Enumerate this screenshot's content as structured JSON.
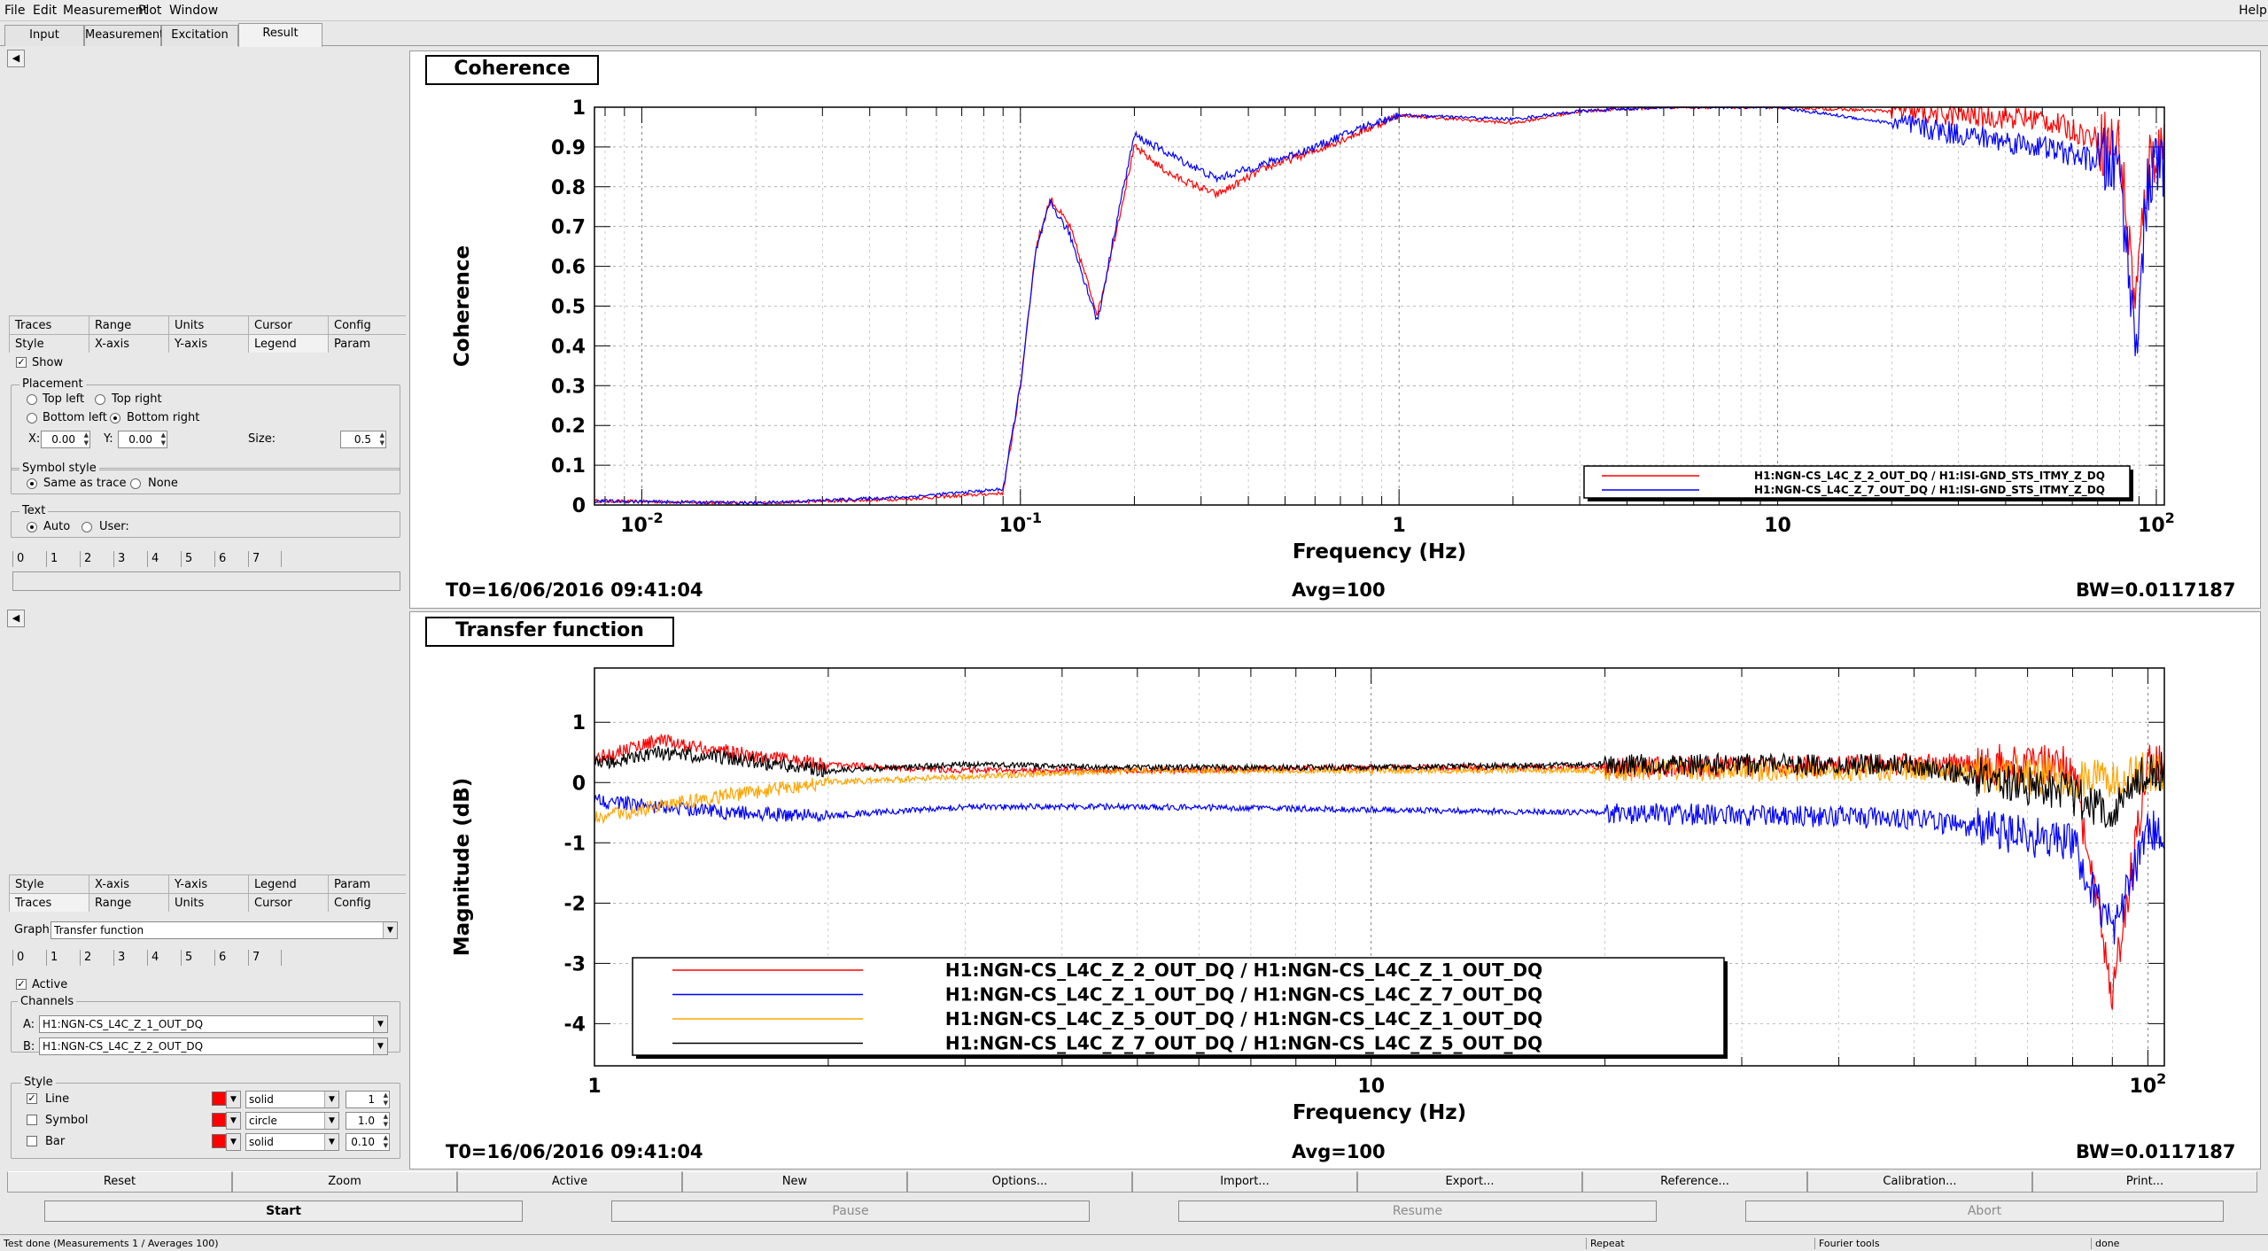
{
  "menu": {
    "file": "File",
    "edit": "Edit",
    "measurement": "Measurement",
    "plot": "Plot",
    "window": "Window",
    "help": "Help"
  },
  "tabs": {
    "input": "Input",
    "measurement": "Measurement",
    "excitation": "Excitation",
    "result": "Result"
  },
  "panel1": {
    "tabs_row1": [
      "Traces",
      "Range",
      "Units",
      "Cursor",
      "Config"
    ],
    "tabs_row2": [
      "Style",
      "X-axis",
      "Y-axis",
      "Legend",
      "Param"
    ],
    "show": "Show",
    "placement": {
      "title": "Placement",
      "top_left": "Top left",
      "top_right": "Top right",
      "bottom_left": "Bottom left",
      "bottom_right": "Bottom right",
      "x_label": "X:",
      "x_value": "0.00",
      "y_label": "Y:",
      "y_value": "0.00",
      "size_label": "Size:",
      "size_value": "0.5"
    },
    "symbol_style": {
      "title": "Symbol style",
      "same": "Same as trace",
      "none": "None"
    },
    "text": {
      "title": "Text",
      "auto": "Auto",
      "user": "User:"
    },
    "num_tabs": [
      "0",
      "1",
      "2",
      "3",
      "4",
      "5",
      "6",
      "7"
    ]
  },
  "panel2": {
    "tabs_row1": [
      "Style",
      "X-axis",
      "Y-axis",
      "Legend",
      "Param"
    ],
    "tabs_row2": [
      "Traces",
      "Range",
      "Units",
      "Cursor",
      "Config"
    ],
    "graph_label": "Graph:",
    "graph_value": "Transfer function",
    "num_tabs": [
      "0",
      "1",
      "2",
      "3",
      "4",
      "5",
      "6",
      "7"
    ],
    "active": "Active",
    "channels": {
      "title": "Channels",
      "a_label": "A:",
      "a_value": "H1:NGN-CS_L4C_Z_1_OUT_DQ",
      "b_label": "B:",
      "b_value": "H1:NGN-CS_L4C_Z_2_OUT_DQ"
    },
    "style": {
      "title": "Style",
      "line": "Line",
      "symbol": "Symbol",
      "bar": "Bar",
      "line_style": "solid",
      "symbol_style": "circle",
      "bar_style": "solid",
      "line_width": "1",
      "symbol_size": "1.0",
      "bar_width": "0.10"
    }
  },
  "plot1": {
    "title": "Coherence",
    "t0": "T0=16/06/2016 09:41:04",
    "avg": "Avg=100",
    "bw": "BW=0.0117187"
  },
  "plot2": {
    "title": "Transfer function",
    "t0": "T0=16/06/2016 09:41:04",
    "avg": "Avg=100",
    "bw": "BW=0.0117187"
  },
  "buttons": [
    "Reset",
    "Zoom",
    "Active",
    "New",
    "Options...",
    "Import...",
    "Export...",
    "Reference...",
    "Calibration...",
    "Print..."
  ],
  "controls": {
    "start": "Start",
    "pause": "Pause",
    "resume": "Resume",
    "abort": "Abort"
  },
  "status": {
    "message": "Test done (Measurements 1 / Averages 100)",
    "repeat": "Repeat",
    "fourier": "Fourier tools",
    "done": "done"
  },
  "colors": {
    "red": "#ff0000",
    "blue": "#0000ff",
    "orange": "#ffa500",
    "black": "#000000"
  },
  "chart_data": [
    {
      "type": "line",
      "title": "Coherence",
      "xlabel": "Frequency (Hz)",
      "ylabel": "Coherence",
      "xscale": "log",
      "xlim": [
        0.0075,
        105
      ],
      "ylim": [
        0,
        1
      ],
      "x_ticks": [
        "10^-2",
        "10^-1",
        "1",
        "10",
        "10^2"
      ],
      "y_ticks": [
        "0",
        "0.1",
        "0.2",
        "0.3",
        "0.4",
        "0.5",
        "0.6",
        "0.7",
        "0.8",
        "0.9",
        "1"
      ],
      "grid": true,
      "legend_position": "bottom-right",
      "series": [
        {
          "name": "H1:NGN-CS_L4C_Z_2_OUT_DQ / H1:ISI-GND_STS_ITMY_Z_DQ",
          "color": "#ff0000",
          "x": [
            0.0075,
            0.02,
            0.05,
            0.09,
            0.1,
            0.11,
            0.12,
            0.135,
            0.16,
            0.18,
            0.2,
            0.25,
            0.33,
            0.45,
            0.6,
            0.8,
            1,
            2,
            3,
            5,
            10,
            20,
            50,
            80,
            88,
            95,
            100
          ],
          "y": [
            0.01,
            0.005,
            0.015,
            0.03,
            0.3,
            0.65,
            0.77,
            0.7,
            0.48,
            0.7,
            0.9,
            0.83,
            0.78,
            0.85,
            0.89,
            0.94,
            0.98,
            0.96,
            0.99,
            1.0,
            1.0,
            0.99,
            0.97,
            0.9,
            0.5,
            0.85,
            0.9
          ]
        },
        {
          "name": "H1:NGN-CS_L4C_Z_7_OUT_DQ / H1:ISI-GND_STS_ITMY_Z_DQ",
          "color": "#0000ff",
          "x": [
            0.0075,
            0.02,
            0.05,
            0.09,
            0.1,
            0.11,
            0.12,
            0.135,
            0.16,
            0.18,
            0.2,
            0.25,
            0.33,
            0.45,
            0.6,
            0.8,
            1,
            2,
            3,
            5,
            10,
            20,
            50,
            80,
            88,
            95,
            100
          ],
          "y": [
            0.01,
            0.005,
            0.02,
            0.04,
            0.3,
            0.64,
            0.76,
            0.68,
            0.46,
            0.72,
            0.93,
            0.88,
            0.82,
            0.86,
            0.9,
            0.95,
            0.98,
            0.97,
            0.99,
            1.0,
            1.0,
            0.96,
            0.9,
            0.85,
            0.4,
            0.8,
            0.85
          ]
        }
      ]
    },
    {
      "type": "line",
      "title": "Transfer function",
      "xlabel": "Frequency (Hz)",
      "ylabel": "Magnitude (dB)",
      "xscale": "log",
      "xlim": [
        1,
        105
      ],
      "ylim": [
        -4.7,
        1.9
      ],
      "x_ticks": [
        "1",
        "10",
        "10^2"
      ],
      "y_ticks": [
        "-4",
        "-3",
        "-2",
        "-1",
        "0",
        "1"
      ],
      "grid": true,
      "legend_position": "bottom-left",
      "series": [
        {
          "name": "H1:NGN-CS_L4C_Z_2_OUT_DQ / H1:NGN-CS_L4C_Z_1_OUT_DQ",
          "color": "#ff0000",
          "x": [
            1,
            1.2,
            1.5,
            2,
            3,
            5,
            10,
            20,
            50,
            80,
            90,
            100
          ],
          "y": [
            0.4,
            0.7,
            0.5,
            0.3,
            0.2,
            0.2,
            0.25,
            0.25,
            0.3,
            0.3,
            -3.5,
            0.3
          ]
        },
        {
          "name": "H1:NGN-CS_L4C_Z_1_OUT_DQ / H1:NGN-CS_L4C_Z_7_OUT_DQ",
          "color": "#0000ff",
          "x": [
            1,
            1.2,
            1.5,
            2,
            3,
            5,
            10,
            20,
            50,
            80,
            90,
            100
          ],
          "y": [
            -0.3,
            -0.4,
            -0.5,
            -0.55,
            -0.4,
            -0.4,
            -0.45,
            -0.5,
            -0.6,
            -1.0,
            -2.5,
            -0.8
          ]
        },
        {
          "name": "H1:NGN-CS_L4C_Z_5_OUT_DQ / H1:NGN-CS_L4C_Z_1_OUT_DQ",
          "color": "#ffa500",
          "x": [
            1,
            1.2,
            1.5,
            2,
            3,
            5,
            10,
            20,
            50,
            80,
            90,
            100
          ],
          "y": [
            -0.6,
            -0.4,
            -0.2,
            0.0,
            0.1,
            0.2,
            0.2,
            0.2,
            0.2,
            0.1,
            0.0,
            0.2
          ]
        },
        {
          "name": "H1:NGN-CS_L4C_Z_7_OUT_DQ / H1:NGN-CS_L4C_Z_5_OUT_DQ",
          "color": "#000000",
          "x": [
            1,
            1.2,
            1.5,
            2,
            3,
            5,
            10,
            20,
            50,
            80,
            90,
            100
          ],
          "y": [
            0.3,
            0.5,
            0.4,
            0.2,
            0.3,
            0.25,
            0.25,
            0.3,
            0.3,
            -0.2,
            -0.5,
            0.2
          ]
        }
      ]
    }
  ]
}
